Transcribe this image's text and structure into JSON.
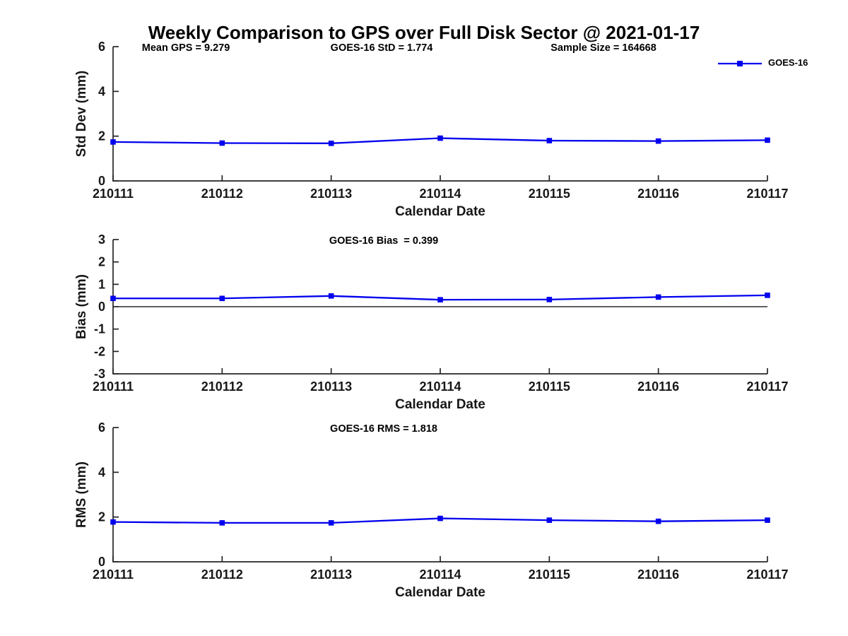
{
  "title": "Weekly Comparison to GPS over Full Disk Sector @ 2021-01-17",
  "legend": {
    "label": "GOES-16",
    "color": "#0000EE",
    "position": "top-right"
  },
  "chart_data": [
    {
      "type": "line",
      "annotations": [
        "Mean GPS = 9.279",
        "GOES-16 StD = 1.774",
        "Sample Size = 164668"
      ],
      "categories": [
        "210111",
        "210112",
        "210113",
        "210114",
        "210115",
        "210116",
        "210117"
      ],
      "series": [
        {
          "name": "GOES-16",
          "values": [
            1.74,
            1.69,
            1.68,
            1.91,
            1.8,
            1.78,
            1.82
          ]
        }
      ],
      "xlabel": "Calendar Date",
      "ylabel": "Std Dev (mm)",
      "ylim": [
        0,
        6
      ],
      "yticks": [
        0,
        2,
        4,
        6
      ],
      "grid": false,
      "zero_line": false,
      "marker": "square"
    },
    {
      "type": "line",
      "annotations": [
        "GOES-16 Bias  = 0.399"
      ],
      "categories": [
        "210111",
        "210112",
        "210113",
        "210114",
        "210115",
        "210116",
        "210117"
      ],
      "series": [
        {
          "name": "GOES-16",
          "values": [
            0.37,
            0.37,
            0.48,
            0.31,
            0.32,
            0.43,
            0.51
          ]
        }
      ],
      "xlabel": "Calendar Date",
      "ylabel": "Bias (mm)",
      "ylim": [
        -3,
        3
      ],
      "yticks": [
        3,
        2,
        1,
        0,
        -1,
        -2,
        -3
      ],
      "grid": false,
      "zero_line": true,
      "marker": "square"
    },
    {
      "type": "line",
      "annotations": [
        "GOES-16 RMS = 1.818"
      ],
      "categories": [
        "210111",
        "210112",
        "210113",
        "210114",
        "210115",
        "210116",
        "210117"
      ],
      "series": [
        {
          "name": "GOES-16",
          "values": [
            1.78,
            1.74,
            1.74,
            1.94,
            1.86,
            1.81,
            1.86
          ]
        }
      ],
      "xlabel": "Calendar Date",
      "ylabel": "RMS (mm)",
      "ylim": [
        0,
        6
      ],
      "yticks": [
        0,
        2,
        4,
        6
      ],
      "grid": false,
      "zero_line": false,
      "marker": "square"
    }
  ]
}
